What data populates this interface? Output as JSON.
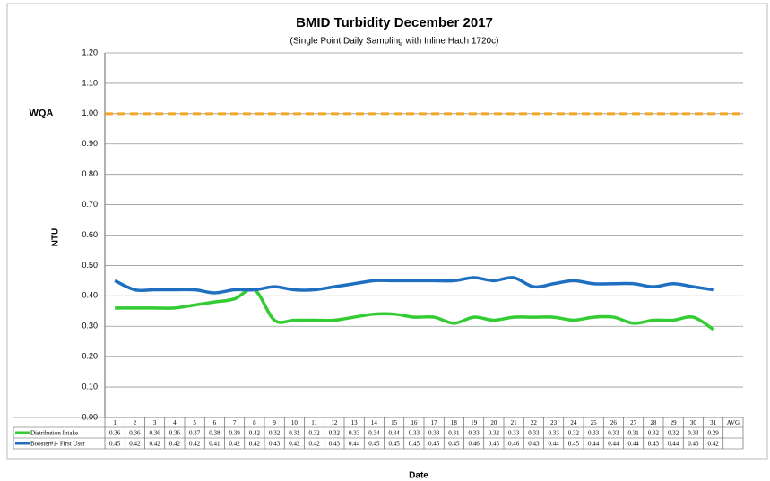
{
  "chart_data": {
    "type": "line",
    "title": "BMID Turbidity December 2017",
    "subtitle": "(Single Point Daily Sampling with Inline Hach 1720c)",
    "x_label": "Date",
    "y_label": "NTU",
    "categories": [
      "1",
      "2",
      "3",
      "4",
      "5",
      "6",
      "7",
      "8",
      "9",
      "10",
      "11",
      "12",
      "13",
      "14",
      "15",
      "16",
      "17",
      "18",
      "19",
      "20",
      "21",
      "22",
      "23",
      "24",
      "25",
      "26",
      "27",
      "28",
      "29",
      "30",
      "31",
      "AVG"
    ],
    "series": [
      {
        "name": "Distribution Intake",
        "color": "#33cc33",
        "values": [
          0.36,
          0.36,
          0.36,
          0.36,
          0.37,
          0.38,
          0.39,
          0.42,
          0.32,
          0.32,
          0.32,
          0.32,
          0.33,
          0.34,
          0.34,
          0.33,
          0.33,
          0.31,
          0.33,
          0.32,
          0.33,
          0.33,
          0.33,
          0.32,
          0.33,
          0.33,
          0.31,
          0.32,
          0.32,
          0.33,
          0.29,
          null
        ]
      },
      {
        "name": "Booster#1- First User",
        "color": "#1f6fc0",
        "values": [
          0.45,
          0.42,
          0.42,
          0.42,
          0.42,
          0.41,
          0.42,
          0.42,
          0.43,
          0.42,
          0.42,
          0.43,
          0.44,
          0.45,
          0.45,
          0.45,
          0.45,
          0.45,
          0.46,
          0.45,
          0.46,
          0.43,
          0.44,
          0.45,
          0.44,
          0.44,
          0.44,
          0.43,
          0.44,
          0.43,
          0.42,
          null
        ]
      }
    ],
    "threshold": {
      "label": "WQA",
      "value": 1.0,
      "color": "#f5a623"
    },
    "ylim": [
      0,
      1.2
    ],
    "yticks": [
      {
        "value": 0,
        "label": "0.00"
      },
      {
        "value": 0.1,
        "label": "0.10"
      },
      {
        "value": 0.2,
        "label": "0.20"
      },
      {
        "value": 0.3,
        "label": "0.30"
      },
      {
        "value": 0.4,
        "label": "0.40"
      },
      {
        "value": 0.5,
        "label": "0.50"
      },
      {
        "value": 0.6,
        "label": "0.60"
      },
      {
        "value": 0.7,
        "label": "0.70"
      },
      {
        "value": 0.8,
        "label": "0.80"
      },
      {
        "value": 0.9,
        "label": "0.90"
      },
      {
        "value": 1.0,
        "label": "1.00"
      },
      {
        "value": 1.1,
        "label": "1.10"
      },
      {
        "value": 1.2,
        "label": "1.20"
      }
    ],
    "grid": true
  }
}
